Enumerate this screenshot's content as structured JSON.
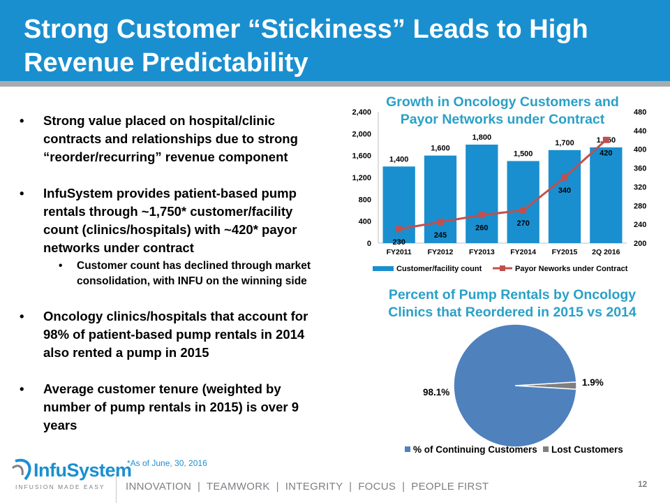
{
  "slide": {
    "title_line1": "Strong Customer “Stickiness” Leads to High",
    "title_line2": "Revenue Predictability",
    "bullets": [
      "Strong value placed on hospital/clinic contracts and relationships due to strong “reorder/recurring” revenue component",
      "InfuSystem provides patient-based pump rentals through ~1,750* customer/facility count (clinics/hospitals) with ~420* payor networks under contract",
      "Oncology clinics/hospitals that account for 98% of patient-based pump rentals in 2014 also rented a pump in 2015",
      "Average customer tenure (weighted by number of pump rentals in 2015) is over 9 years"
    ],
    "sub_bullet": "Customer count has declined through market consolidation, with INFU on the winning side",
    "footnote": "*As of June, 30, 2016",
    "logo_name": "InfuSystem",
    "logo_tagline": "INFUSION MADE EASY",
    "footer_tagline": "INNOVATION  |  TEAMWORK  |  INTEGRITY  |  FOCUS  |  PEOPLE FIRST",
    "page_number": "12"
  },
  "colors": {
    "header_blue": "#1a8fcf",
    "bar_blue": "#1a8fcf",
    "line_red": "#c0504d",
    "pie_blue": "#4f81bd",
    "pie_gray": "#7f7f7f",
    "chart_title": "#2aa0c7"
  },
  "chart_data": [
    {
      "type": "bar",
      "title": "Growth in Oncology Customers and Payor Networks under Contract",
      "categories": [
        "FY2011",
        "FY2012",
        "FY2013",
        "FY2014",
        "FY2015",
        "2Q 2016"
      ],
      "series": [
        {
          "name": "Customer/facility count",
          "type": "bar",
          "axis": "left",
          "values": [
            1400,
            1600,
            1800,
            1500,
            1700,
            1750
          ],
          "labels": [
            "1,400",
            "1,600",
            "1,800",
            "1,500",
            "1,700",
            "1,750"
          ]
        },
        {
          "name": "Payor Neworks under Contract",
          "type": "line",
          "axis": "right",
          "values": [
            230,
            245,
            260,
            270,
            340,
            420
          ],
          "labels": [
            "230",
            "245",
            "260",
            "270",
            "340",
            "420"
          ]
        }
      ],
      "ylim": [
        0,
        2400
      ],
      "yticks": [
        "0",
        "400",
        "800",
        "1,200",
        "1,600",
        "2,000",
        "2,400"
      ],
      "y2lim": [
        200,
        480
      ],
      "y2ticks": [
        "200",
        "240",
        "280",
        "320",
        "360",
        "400",
        "440",
        "480"
      ],
      "legend": "bottom",
      "grid": false
    },
    {
      "type": "pie",
      "title": "Percent of Pump Rentals by Oncology Clinics that Reordered in 2015 vs 2014",
      "categories": [
        "% of Continuing Customers",
        "Lost Customers"
      ],
      "values": [
        98.1,
        1.9
      ],
      "labels": [
        "98.1%",
        "1.9%"
      ],
      "legend": "bottom"
    }
  ]
}
